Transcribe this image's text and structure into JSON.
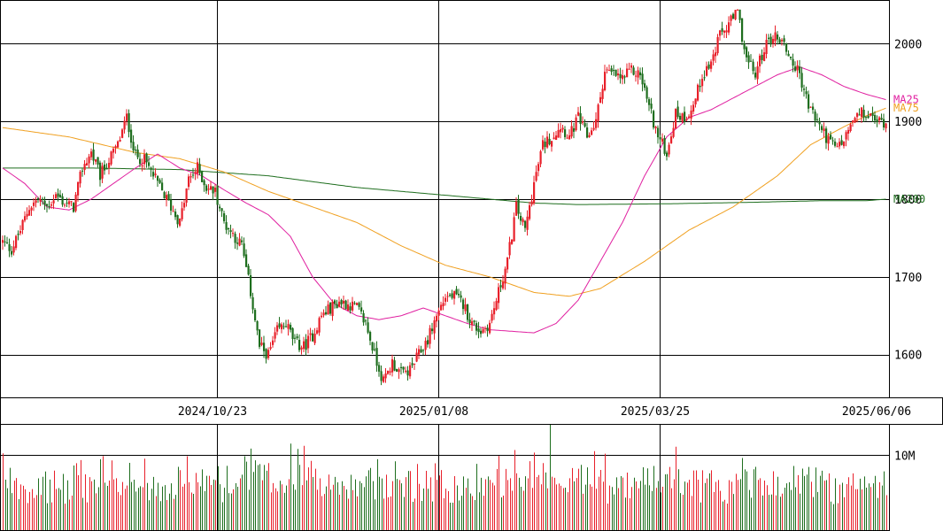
{
  "chart_data": {
    "type": "candlestick",
    "price_axis": {
      "range": [
        1545,
        2055
      ],
      "ticks": [
        "1600",
        "1700",
        "1800",
        "1900",
        "2000"
      ]
    },
    "volume_axis": {
      "range": [
        0,
        14000000
      ],
      "ticks": [
        {
          "value": 10000000,
          "label": "10M"
        }
      ]
    },
    "date_ticks": [
      "2024/10/23",
      "2025/01/08",
      "2025/03/25",
      "2025/06/06"
    ],
    "colors": {
      "up": "#e8202a",
      "down": "#1e6e1e",
      "ma25": "#e020a0",
      "ma75": "#f0a020",
      "ma200": "#1e6e1e",
      "grid": "#000000"
    },
    "ma_labels": [
      {
        "name": "MA25",
        "value": 1928
      },
      {
        "name": "MA75",
        "value": 1917
      },
      {
        "name": "MA200",
        "value": 1800
      }
    ],
    "anchors": [
      [
        0,
        1745
      ],
      [
        4,
        1735
      ],
      [
        8,
        1760
      ],
      [
        12,
        1790
      ],
      [
        16,
        1800
      ],
      [
        20,
        1790
      ],
      [
        24,
        1805
      ],
      [
        28,
        1795
      ],
      [
        32,
        1790
      ],
      [
        36,
        1840
      ],
      [
        40,
        1860
      ],
      [
        44,
        1830
      ],
      [
        48,
        1850
      ],
      [
        52,
        1870
      ],
      [
        56,
        1905
      ],
      [
        60,
        1855
      ],
      [
        64,
        1850
      ],
      [
        68,
        1830
      ],
      [
        72,
        1810
      ],
      [
        76,
        1790
      ],
      [
        80,
        1770
      ],
      [
        84,
        1825
      ],
      [
        88,
        1840
      ],
      [
        92,
        1815
      ],
      [
        96,
        1810
      ],
      [
        100,
        1770
      ],
      [
        104,
        1755
      ],
      [
        108,
        1740
      ],
      [
        112,
        1680
      ],
      [
        116,
        1610
      ],
      [
        120,
        1600
      ],
      [
        124,
        1630
      ],
      [
        128,
        1640
      ],
      [
        132,
        1615
      ],
      [
        136,
        1610
      ],
      [
        140,
        1625
      ],
      [
        144,
        1650
      ],
      [
        148,
        1660
      ],
      [
        152,
        1668
      ],
      [
        156,
        1665
      ],
      [
        160,
        1660
      ],
      [
        164,
        1640
      ],
      [
        168,
        1600
      ],
      [
        172,
        1565
      ],
      [
        176,
        1590
      ],
      [
        180,
        1575
      ],
      [
        184,
        1580
      ],
      [
        188,
        1600
      ],
      [
        192,
        1620
      ],
      [
        196,
        1650
      ],
      [
        200,
        1675
      ],
      [
        204,
        1675
      ],
      [
        208,
        1665
      ],
      [
        212,
        1640
      ],
      [
        216,
        1630
      ],
      [
        220,
        1640
      ],
      [
        224,
        1680
      ],
      [
        228,
        1720
      ],
      [
        232,
        1790
      ],
      [
        236,
        1760
      ],
      [
        240,
        1820
      ],
      [
        244,
        1870
      ],
      [
        248,
        1880
      ],
      [
        252,
        1895
      ],
      [
        256,
        1880
      ],
      [
        260,
        1905
      ],
      [
        264,
        1880
      ],
      [
        268,
        1900
      ],
      [
        272,
        1965
      ],
      [
        276,
        1960
      ],
      [
        280,
        1955
      ],
      [
        284,
        1965
      ],
      [
        288,
        1960
      ],
      [
        292,
        1920
      ],
      [
        296,
        1880
      ],
      [
        300,
        1860
      ],
      [
        304,
        1910
      ],
      [
        308,
        1905
      ],
      [
        312,
        1920
      ],
      [
        316,
        1960
      ],
      [
        320,
        1975
      ],
      [
        324,
        2010
      ],
      [
        328,
        2025
      ],
      [
        332,
        2040
      ],
      [
        336,
        1980
      ],
      [
        340,
        1960
      ],
      [
        344,
        1995
      ],
      [
        348,
        2010
      ],
      [
        352,
        2005
      ],
      [
        356,
        1980
      ],
      [
        360,
        1960
      ],
      [
        364,
        1920
      ],
      [
        368,
        1900
      ],
      [
        372,
        1880
      ],
      [
        376,
        1865
      ],
      [
        380,
        1875
      ],
      [
        384,
        1900
      ],
      [
        388,
        1910
      ],
      [
        392,
        1905
      ],
      [
        396,
        1900
      ],
      [
        399,
        1900
      ]
    ],
    "ma25": [
      [
        0,
        1840
      ],
      [
        10,
        1820
      ],
      [
        20,
        1790
      ],
      [
        30,
        1786
      ],
      [
        40,
        1800
      ],
      [
        50,
        1820
      ],
      [
        60,
        1840
      ],
      [
        70,
        1858
      ],
      [
        80,
        1840
      ],
      [
        90,
        1830
      ],
      [
        100,
        1812
      ],
      [
        110,
        1795
      ],
      [
        120,
        1780
      ],
      [
        130,
        1752
      ],
      [
        140,
        1700
      ],
      [
        150,
        1665
      ],
      [
        160,
        1650
      ],
      [
        170,
        1645
      ],
      [
        180,
        1650
      ],
      [
        190,
        1660
      ],
      [
        200,
        1650
      ],
      [
        210,
        1640
      ],
      [
        220,
        1632
      ],
      [
        230,
        1630
      ],
      [
        240,
        1628
      ],
      [
        250,
        1640
      ],
      [
        260,
        1670
      ],
      [
        270,
        1720
      ],
      [
        280,
        1770
      ],
      [
        290,
        1830
      ],
      [
        300,
        1880
      ],
      [
        310,
        1905
      ],
      [
        320,
        1915
      ],
      [
        330,
        1930
      ],
      [
        340,
        1945
      ],
      [
        350,
        1960
      ],
      [
        360,
        1970
      ],
      [
        370,
        1960
      ],
      [
        380,
        1945
      ],
      [
        390,
        1935
      ],
      [
        399,
        1928
      ]
    ],
    "ma75": [
      [
        0,
        1892
      ],
      [
        30,
        1880
      ],
      [
        60,
        1860
      ],
      [
        80,
        1852
      ],
      [
        100,
        1835
      ],
      [
        120,
        1810
      ],
      [
        140,
        1790
      ],
      [
        160,
        1770
      ],
      [
        180,
        1740
      ],
      [
        200,
        1715
      ],
      [
        220,
        1700
      ],
      [
        230,
        1690
      ],
      [
        240,
        1680
      ],
      [
        256,
        1675
      ],
      [
        270,
        1685
      ],
      [
        290,
        1720
      ],
      [
        310,
        1760
      ],
      [
        330,
        1790
      ],
      [
        350,
        1830
      ],
      [
        365,
        1870
      ],
      [
        380,
        1893
      ],
      [
        390,
        1907
      ],
      [
        399,
        1917
      ]
    ],
    "ma200": [
      [
        0,
        1840
      ],
      [
        40,
        1840
      ],
      [
        80,
        1838
      ],
      [
        120,
        1830
      ],
      [
        160,
        1815
      ],
      [
        200,
        1805
      ],
      [
        240,
        1795
      ],
      [
        260,
        1793
      ],
      [
        300,
        1794
      ],
      [
        340,
        1796
      ],
      [
        370,
        1798
      ],
      [
        390,
        1798
      ],
      [
        399,
        1800
      ]
    ]
  }
}
